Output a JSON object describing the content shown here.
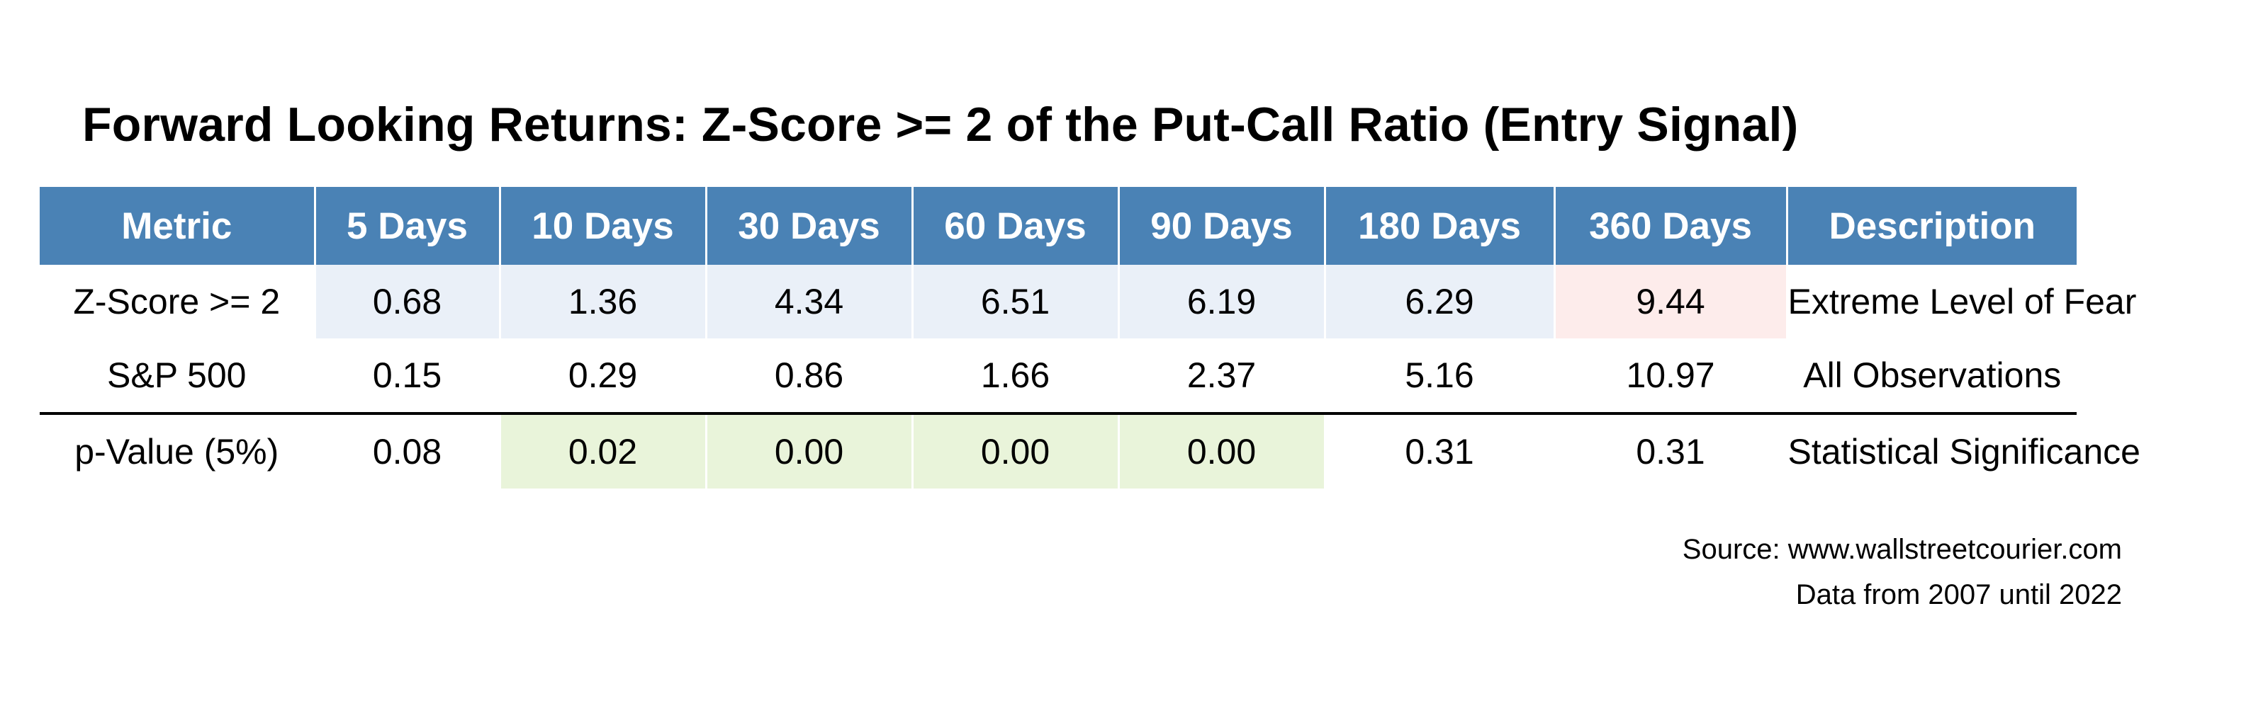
{
  "chart_data": {
    "type": "table",
    "title": "Forward Looking Returns: Z-Score >= 2 of the Put-Call Ratio (Entry Signal)",
    "columns": [
      "Metric",
      "5 Days",
      "10 Days",
      "30 Days",
      "60 Days",
      "90 Days",
      "180 Days",
      "360 Days",
      "Description"
    ],
    "rows": [
      {
        "metric": "Z-Score >= 2",
        "values": [
          "0.68",
          "1.36",
          "4.34",
          "6.51",
          "6.19",
          "6.29",
          "9.44"
        ],
        "description": "Extreme Level of Fear"
      },
      {
        "metric": "S&P 500",
        "values": [
          "0.15",
          "0.29",
          "0.86",
          "1.66",
          "2.37",
          "5.16",
          "10.97"
        ],
        "description": "All Observations"
      },
      {
        "metric": "p-Value (5%)",
        "values": [
          "0.08",
          "0.02",
          "0.00",
          "0.00",
          "0.00",
          "0.31",
          "0.31"
        ],
        "description": "Statistical Significance"
      }
    ],
    "cell_highlights": [
      [
        "#eaf0f8",
        "#eaf0f8",
        "#eaf0f8",
        "#eaf0f8",
        "#eaf0f8",
        "#eaf0f8",
        "#fdeceb"
      ],
      [
        "",
        "",
        "",
        "",
        "",
        "",
        ""
      ],
      [
        "",
        "#e9f4da",
        "#e9f4da",
        "#e9f4da",
        "#e9f4da",
        "",
        ""
      ]
    ],
    "header_color": "#4a82b5"
  },
  "source": {
    "line1": "Source: www.wallstreetcourier.com",
    "line2": "Data from 2007 until 2022"
  }
}
